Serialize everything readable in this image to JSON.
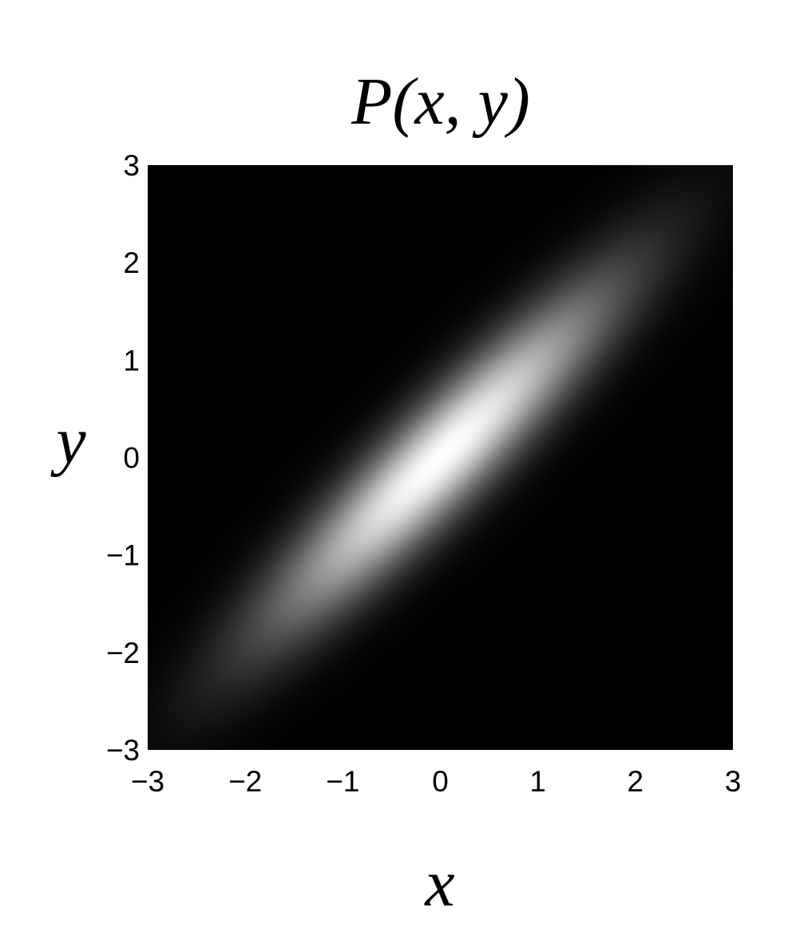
{
  "chart_data": {
    "type": "heatmap",
    "title": "P(x, y)",
    "xlabel": "x",
    "ylabel": "y",
    "xlim": [
      -3,
      3
    ],
    "ylim": [
      -3,
      3
    ],
    "x_ticks": [
      -3,
      -2,
      -1,
      0,
      1,
      2,
      3
    ],
    "y_ticks": [
      -3,
      -2,
      -1,
      0,
      1,
      2,
      3
    ],
    "x_tick_labels": [
      "−3",
      "−2",
      "−1",
      "0",
      "1",
      "2",
      "3"
    ],
    "y_tick_labels": [
      "−3",
      "−2",
      "−1",
      "0",
      "1",
      "2",
      "3"
    ],
    "colormap": "gray",
    "colormap_low": "#000000",
    "colormap_high": "#ffffff",
    "distribution": {
      "name": "bivariate normal",
      "mean": [
        0,
        0
      ],
      "std_x": 1.2,
      "std_y": 1.2,
      "correlation": 0.92
    },
    "grid": false,
    "legend": "none"
  }
}
